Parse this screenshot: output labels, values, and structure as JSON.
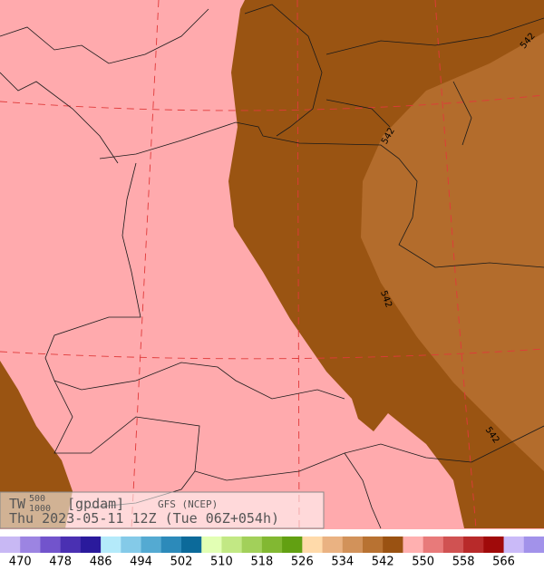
{
  "title": {
    "name": "TW",
    "sup": "500",
    "sub": "1000",
    "units": "[gpdam]",
    "model": "GFS (NCEP)",
    "time": "Thu 2023-05-11 12Z (Tue 06Z+054h)"
  },
  "contour_labels": [
    "542",
    "542",
    "542",
    "542"
  ],
  "colorbar": {
    "colors": [
      "#c8b8f4",
      "#9c84e2",
      "#7254cc",
      "#4a30b2",
      "#2a1a9c",
      "#b4eafa",
      "#84cae8",
      "#54aad2",
      "#2c8aba",
      "#0c6a9a",
      "#e2ffb4",
      "#c2e884",
      "#a2d05a",
      "#82b832",
      "#62a012",
      "#ffdaaa",
      "#eab282",
      "#d2925a",
      "#b87232",
      "#9a5212",
      "#ffb0b0",
      "#e87a7a",
      "#d05252",
      "#b82a2a",
      "#a00a0a",
      "#cabaf8",
      "#a292ea"
    ],
    "labels": [
      "470",
      "478",
      "486",
      "494",
      "502",
      "510",
      "518",
      "526",
      "534",
      "542",
      "550",
      "558",
      "566"
    ]
  }
}
